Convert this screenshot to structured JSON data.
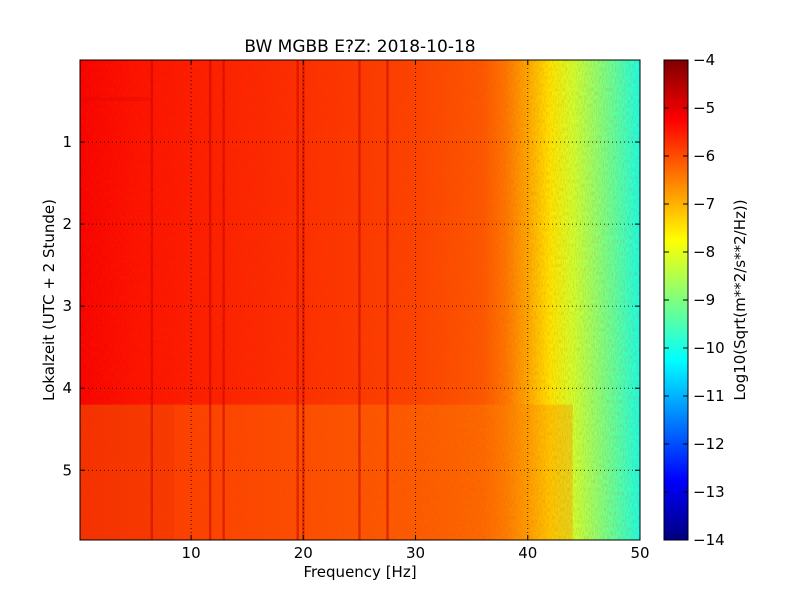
{
  "chart_data": {
    "type": "heatmap",
    "title": "BW MGBB E?Z: 2018-10-18",
    "xlabel": "Frequency [Hz]",
    "ylabel": "Lokalzeit (UTC + 2 Stunde)",
    "xlim": [
      0.1,
      50
    ],
    "ylim": [
      5.85,
      0
    ],
    "y_inverted": true,
    "x_ticks": [
      10,
      20,
      30,
      40,
      50
    ],
    "y_ticks": [
      1,
      2,
      3,
      4,
      5
    ],
    "x_tick_labels": [
      "10",
      "20",
      "30",
      "40",
      "50"
    ],
    "y_tick_labels": [
      "1",
      "2",
      "3",
      "4",
      "5"
    ],
    "grid": true,
    "colormap": "jet",
    "colorbar": {
      "label": "Log10(Sqrt(m**2/s**2/Hz))",
      "range": [
        -14,
        -4
      ],
      "ticks": [
        -4,
        -5,
        -6,
        -7,
        -8,
        -9,
        -10,
        -11,
        -12,
        -13,
        -14
      ],
      "tick_labels": [
        "−4",
        "−5",
        "−6",
        "−7",
        "−8",
        "−9",
        "−10",
        "−11",
        "−12",
        "−13",
        "−14"
      ]
    },
    "spectrum_profile": {
      "frequency_hz": [
        0.1,
        5,
        10,
        20,
        30,
        36,
        38,
        40,
        42,
        44,
        46,
        48,
        50
      ],
      "log10_amplitude": [
        -5.2,
        -5.4,
        -5.5,
        -5.7,
        -5.9,
        -6.1,
        -6.4,
        -6.9,
        -7.5,
        -8.2,
        -8.8,
        -9.4,
        -10.0
      ]
    },
    "spectral_lines_hz": [
      6.5,
      11.7,
      12.9,
      19.5,
      20.0,
      25.0,
      27.5
    ],
    "noise_bursts": [
      {
        "time_start": 0.45,
        "time_end": 0.5,
        "freq_max": 6.5,
        "level": -5.0
      },
      {
        "time_start": 4.2,
        "time_end": 5.85,
        "freq_max": 8.5,
        "level": -5.0
      },
      {
        "time_start": 4.2,
        "time_end": 5.85,
        "freq_max": 44.0,
        "level": -6.6
      }
    ]
  }
}
